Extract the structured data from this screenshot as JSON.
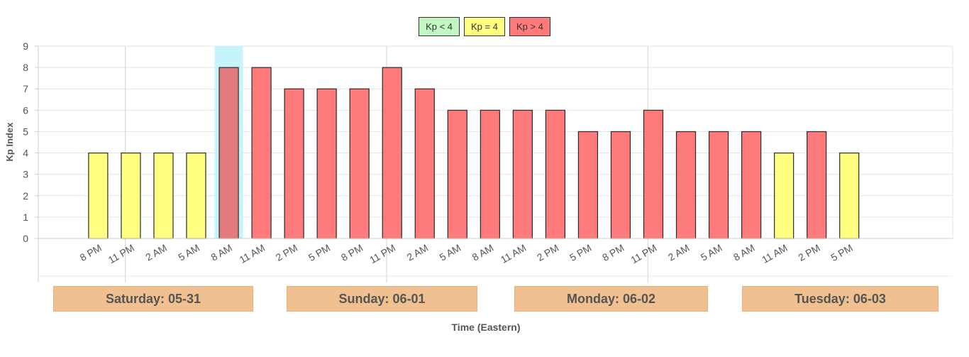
{
  "legend": [
    {
      "label": "Kp < 4",
      "color": "#c2f7c2"
    },
    {
      "label": "Kp = 4",
      "color": "#ffff80"
    },
    {
      "label": "Kp > 4",
      "color": "#ff7a7a"
    }
  ],
  "colors": {
    "low": "#c2f7c2",
    "eq": "#ffff80",
    "high": "#ff7a7a",
    "highlight": "#c6f4fb",
    "day_box": "#f0c090"
  },
  "days": [
    "Saturday: 05-31",
    "Sunday: 06-01",
    "Monday: 06-02",
    "Tuesday: 06-03"
  ],
  "chart_data": {
    "type": "bar",
    "title": "",
    "xlabel": "Time (Eastern)",
    "ylabel": "Kp Index",
    "ylim": [
      0,
      9
    ],
    "yticks": [
      0,
      1,
      2,
      3,
      4,
      5,
      6,
      7,
      8,
      9
    ],
    "grid": true,
    "legend_position": "top-center",
    "highlighted_category": "Sunday 8 AM",
    "groups": [
      {
        "day": "Saturday: 05-31",
        "categories": [
          "8 PM",
          "11 PM"
        ],
        "values": [
          4,
          4
        ]
      },
      {
        "day": "Sunday: 06-01",
        "categories": [
          "2 AM",
          "5 AM",
          "8 AM",
          "11 AM",
          "2 PM",
          "5 PM",
          "8 PM",
          "11 PM"
        ],
        "values": [
          4,
          4,
          8,
          8,
          7,
          7,
          7,
          8
        ]
      },
      {
        "day": "Monday: 06-02",
        "categories": [
          "2 AM",
          "5 AM",
          "8 AM",
          "11 AM",
          "2 PM",
          "5 PM",
          "8 PM",
          "11 PM"
        ],
        "values": [
          7,
          6,
          6,
          6,
          6,
          5,
          5,
          6
        ]
      },
      {
        "day": "Tuesday: 06-03",
        "categories": [
          "2 AM",
          "5 AM",
          "8 AM",
          "11 AM",
          "2 PM",
          "5 PM"
        ],
        "values": [
          5,
          5,
          5,
          4,
          5,
          4
        ]
      }
    ]
  }
}
